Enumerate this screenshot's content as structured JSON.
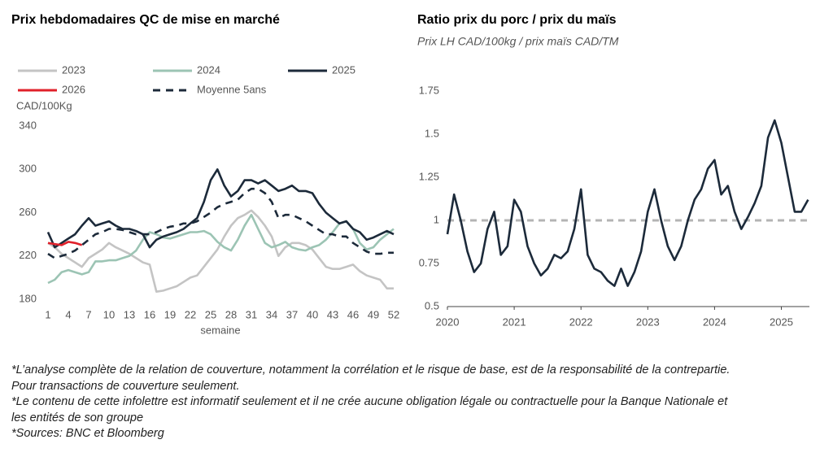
{
  "chart_data": [
    {
      "type": "line",
      "title": "Prix hebdomadaires QC de mise en marché",
      "ylabel": "CAD/100Kg",
      "xlabel": "semaine",
      "x": [
        1,
        2,
        3,
        4,
        5,
        6,
        7,
        8,
        9,
        10,
        11,
        12,
        13,
        14,
        15,
        16,
        17,
        18,
        19,
        20,
        21,
        22,
        23,
        24,
        25,
        26,
        27,
        28,
        29,
        30,
        31,
        32,
        33,
        34,
        35,
        36,
        37,
        38,
        39,
        40,
        41,
        42,
        43,
        44,
        45,
        46,
        47,
        48,
        49,
        50,
        51,
        52
      ],
      "xlim": [
        1,
        52
      ],
      "xticks": [
        1,
        4,
        7,
        10,
        13,
        16,
        19,
        22,
        25,
        28,
        31,
        34,
        37,
        40,
        43,
        46,
        49,
        52
      ],
      "ylim": [
        180,
        340
      ],
      "yticks": [
        180,
        220,
        260,
        300,
        340
      ],
      "series": [
        {
          "name": "2023",
          "color": "#c4c4c4",
          "values": [
            232,
            228,
            222,
            218,
            214,
            210,
            218,
            222,
            226,
            232,
            228,
            225,
            222,
            218,
            214,
            212,
            187,
            188,
            190,
            192,
            196,
            200,
            202,
            210,
            218,
            226,
            238,
            248,
            255,
            258,
            262,
            256,
            248,
            238,
            220,
            228,
            232,
            232,
            230,
            226,
            218,
            210,
            208,
            208,
            210,
            212,
            206,
            202,
            200,
            198,
            190,
            190
          ]
        },
        {
          "name": "2024",
          "color": "#9cc4b4",
          "values": [
            195,
            198,
            205,
            207,
            205,
            203,
            205,
            215,
            215,
            216,
            216,
            218,
            220,
            225,
            235,
            242,
            240,
            237,
            236,
            238,
            240,
            242,
            242,
            243,
            240,
            233,
            228,
            225,
            235,
            248,
            258,
            245,
            232,
            228,
            230,
            233,
            228,
            226,
            225,
            228,
            230,
            235,
            242,
            250,
            252,
            245,
            232,
            226,
            228,
            235,
            240,
            245
          ]
        },
        {
          "name": "2025",
          "color": "#1c2a3a",
          "values": [
            242,
            228,
            232,
            236,
            240,
            248,
            255,
            248,
            250,
            252,
            248,
            245,
            245,
            243,
            240,
            228,
            235,
            238,
            240,
            242,
            245,
            250,
            255,
            270,
            290,
            300,
            285,
            275,
            280,
            290,
            290,
            287,
            290,
            285,
            280,
            282,
            285,
            280,
            280,
            278,
            268,
            260,
            255,
            250,
            252,
            245,
            242,
            235,
            237,
            240,
            243,
            240
          ]
        },
        {
          "name": "2026",
          "color": "#e0202a",
          "values": [
            232,
            231,
            230,
            233,
            232,
            230,
            null,
            null,
            null,
            null,
            null,
            null,
            null,
            null,
            null,
            null,
            null,
            null,
            null,
            null,
            null,
            null,
            null,
            null,
            null,
            null,
            null,
            null,
            null,
            null,
            null,
            null,
            null,
            null,
            null,
            null,
            null,
            null,
            null,
            null,
            null,
            null,
            null,
            null,
            null,
            null,
            null,
            null,
            null,
            null,
            null,
            null
          ]
        },
        {
          "name": "Moyenne 5ans",
          "color": "#1c2a3a",
          "style": "dashed",
          "values": [
            222,
            218,
            220,
            222,
            225,
            230,
            235,
            240,
            242,
            245,
            245,
            244,
            242,
            240,
            240,
            240,
            242,
            245,
            247,
            248,
            250,
            250,
            252,
            256,
            260,
            265,
            268,
            270,
            272,
            278,
            282,
            282,
            278,
            270,
            255,
            258,
            258,
            255,
            252,
            248,
            244,
            240,
            240,
            238,
            238,
            232,
            228,
            224,
            222,
            222,
            223,
            223
          ]
        }
      ]
    },
    {
      "type": "line",
      "title": "Ratio prix du porc / prix du maïs",
      "subtitle": "Prix LH CAD/100kg / prix maïs CAD/TM",
      "x": [
        2020,
        2020.1,
        2020.2,
        2020.3,
        2020.4,
        2020.5,
        2020.6,
        2020.7,
        2020.8,
        2020.9,
        2021,
        2021.1,
        2021.2,
        2021.3,
        2021.4,
        2021.5,
        2021.6,
        2021.7,
        2021.8,
        2021.9,
        2022,
        2022.1,
        2022.2,
        2022.3,
        2022.4,
        2022.5,
        2022.6,
        2022.7,
        2022.8,
        2022.9,
        2023,
        2023.1,
        2023.2,
        2023.3,
        2023.4,
        2023.5,
        2023.6,
        2023.7,
        2023.8,
        2023.9,
        2024,
        2024.1,
        2024.2,
        2024.3,
        2024.4,
        2024.5,
        2024.6,
        2024.7,
        2024.8,
        2024.9,
        2025,
        2025.1,
        2025.2,
        2025.3,
        2025.4
      ],
      "xlim": [
        2020,
        2025.42
      ],
      "xticks": [
        2020,
        2021,
        2022,
        2023,
        2024,
        2025
      ],
      "ylim": [
        0.5,
        1.75
      ],
      "yticks": [
        0.5,
        0.75,
        1,
        1.25,
        1.5,
        1.75
      ],
      "reference_line": 1,
      "reference_color": "#b4b4b4",
      "series": [
        {
          "color": "#1c2a3a",
          "values": [
            0.92,
            1.15,
            1.0,
            0.82,
            0.7,
            0.75,
            0.95,
            1.05,
            0.8,
            0.85,
            1.12,
            1.05,
            0.85,
            0.75,
            0.68,
            0.72,
            0.8,
            0.78,
            0.82,
            0.95,
            1.18,
            0.8,
            0.72,
            0.7,
            0.65,
            0.62,
            0.72,
            0.62,
            0.7,
            0.82,
            1.05,
            1.18,
            1.0,
            0.85,
            0.77,
            0.85,
            1.0,
            1.12,
            1.18,
            1.3,
            1.35,
            1.15,
            1.2,
            1.05,
            0.95,
            1.02,
            1.1,
            1.2,
            1.48,
            1.58,
            1.45,
            1.25,
            1.05,
            1.05,
            1.12
          ]
        }
      ]
    }
  ],
  "notes": [
    "*L’analyse complète de la relation de couverture, notamment la corrélation et le risque de base, est de la responsabilité de la contrepartie. Pour transactions de couverture seulement.",
    "*Le contenu de cette infolettre est informatif seulement et il ne crée aucune obligation légale ou contractuelle pour la Banque Nationale et les entités de son groupe",
    "*Sources: BNC et Bloomberg"
  ]
}
